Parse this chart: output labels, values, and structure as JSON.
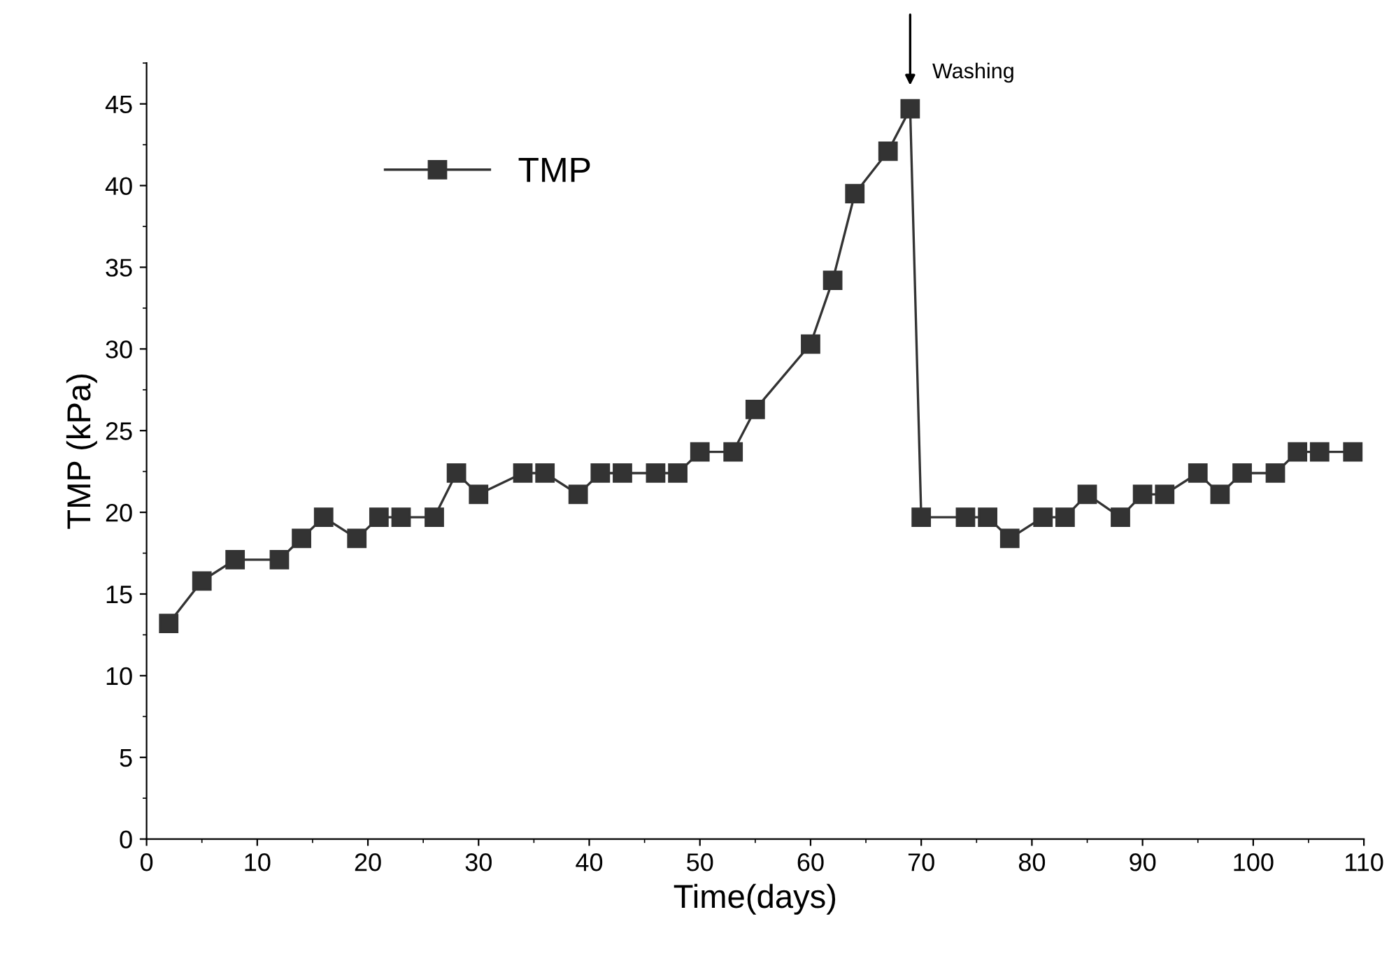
{
  "chart_data": {
    "type": "line",
    "xlabel": "Time(days)",
    "ylabel": "TMP (kPa)",
    "xlim": [
      0,
      110
    ],
    "xticks": [
      0,
      10,
      20,
      30,
      40,
      50,
      60,
      70,
      80,
      90,
      100,
      110
    ],
    "ylim": [
      0,
      47.5
    ],
    "yticks": [
      0,
      5,
      10,
      15,
      20,
      25,
      30,
      35,
      40,
      45
    ],
    "grid": false,
    "legend": "top left",
    "marker": "square",
    "line_style": "solid",
    "annotations": [
      {
        "text": "Washing",
        "x": 69,
        "y": 44.7
      }
    ],
    "series": [
      {
        "name": "TMP",
        "color": "#333333",
        "x": [
          2,
          5,
          8,
          12,
          14,
          16,
          19,
          21,
          23,
          26,
          28,
          30,
          34,
          36,
          39,
          41,
          43,
          46,
          48,
          50,
          53,
          55,
          60,
          62,
          64,
          67,
          69,
          70,
          74,
          76,
          78,
          81,
          83,
          85,
          88,
          90,
          92,
          95,
          97,
          99,
          102,
          104,
          106,
          109
        ],
        "values": [
          13.2,
          15.8,
          17.1,
          17.1,
          18.4,
          19.7,
          18.4,
          19.7,
          19.7,
          19.7,
          22.4,
          21.1,
          22.4,
          22.4,
          21.1,
          22.4,
          22.4,
          22.4,
          22.4,
          23.7,
          23.7,
          26.3,
          30.3,
          34.2,
          39.5,
          42.1,
          44.7,
          19.7,
          19.7,
          19.7,
          18.4,
          19.7,
          19.7,
          21.1,
          19.7,
          21.1,
          21.1,
          22.4,
          21.1,
          22.4,
          22.4,
          23.7,
          23.7,
          23.7
        ]
      }
    ]
  }
}
